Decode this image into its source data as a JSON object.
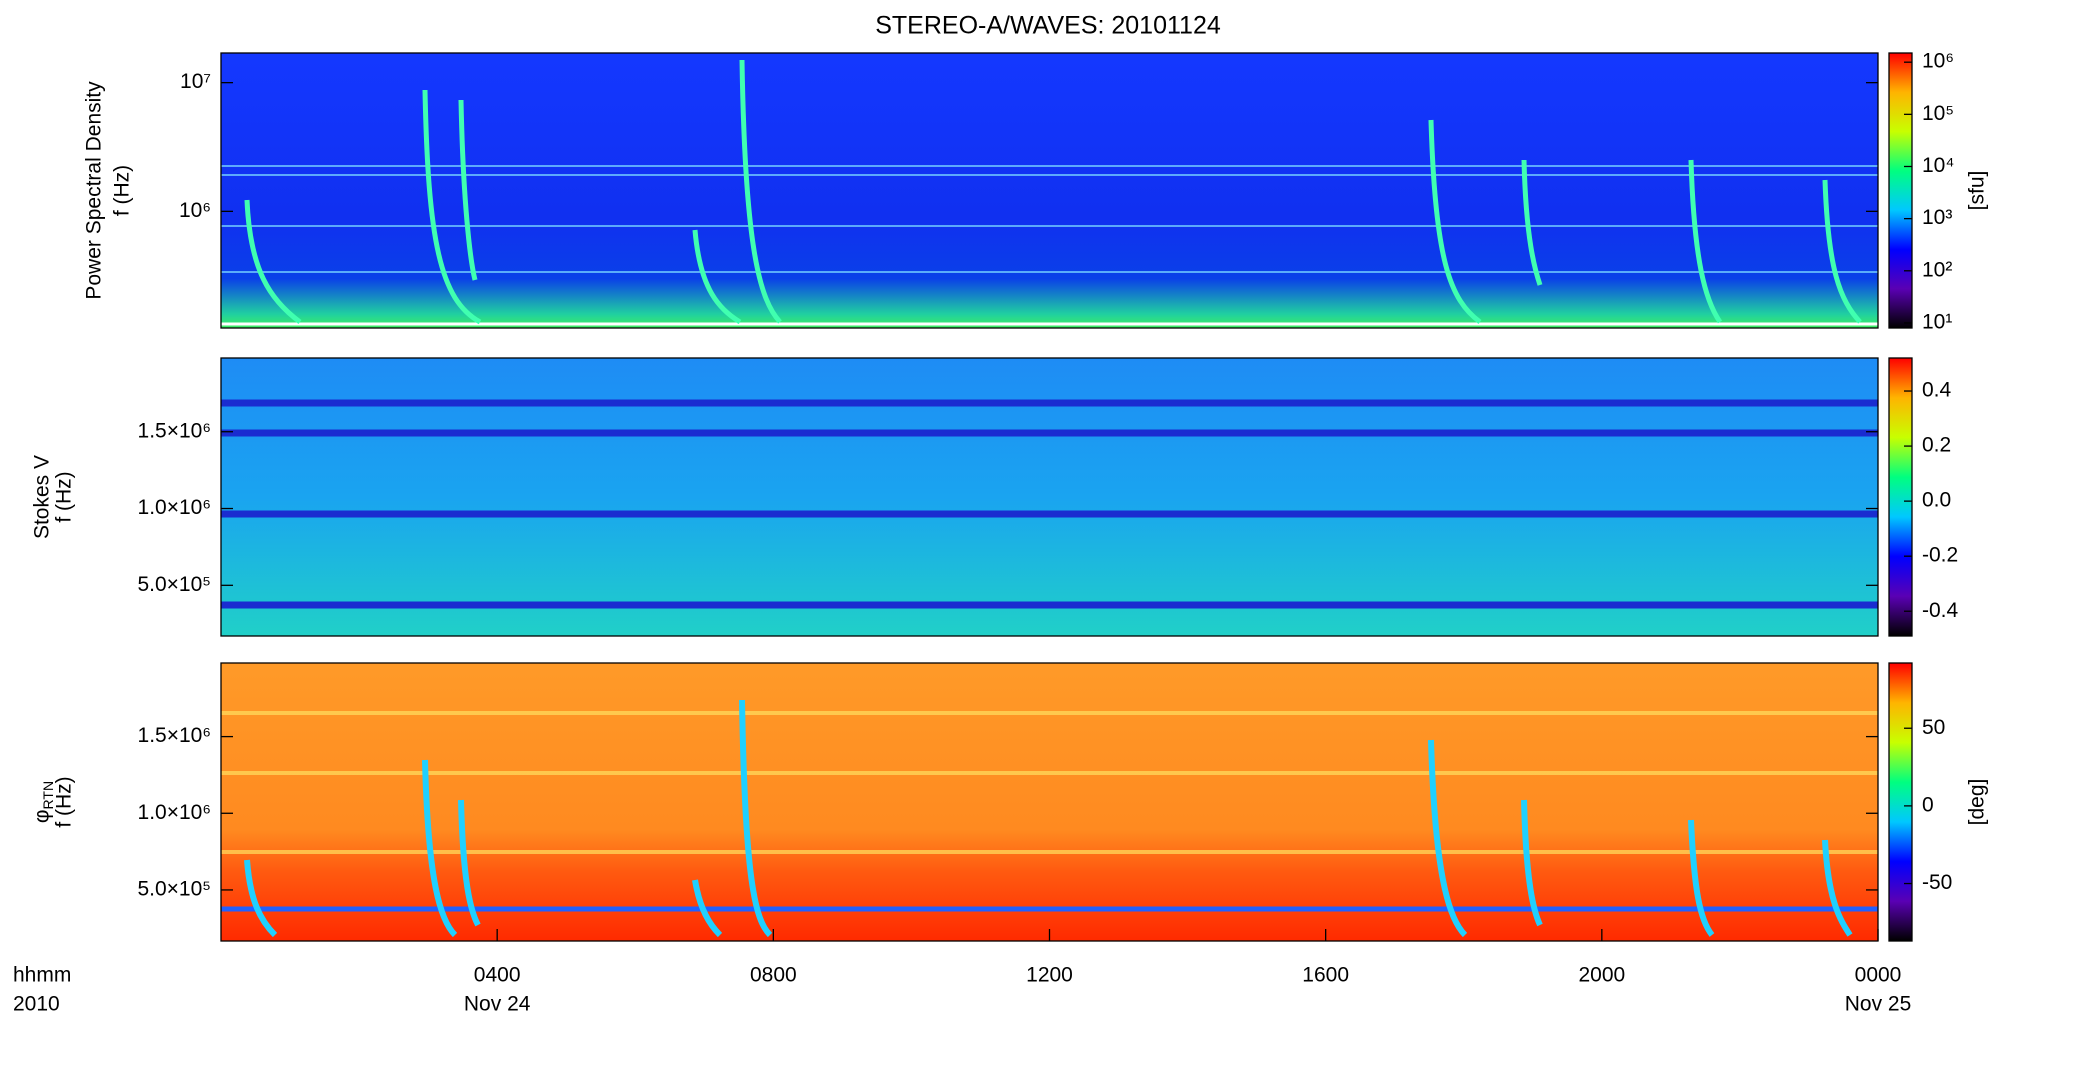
{
  "chart_data": [
    {
      "type": "heatmap",
      "title": "STEREO-A/WAVES: 20101124",
      "ylabel": [
        "Power Spectral Density",
        "f (Hz)"
      ],
      "log": true,
      "ylim": [
        124000,
        17000000
      ],
      "yticks": [
        {
          "value": 1000000,
          "label": "10⁶"
        },
        {
          "value": 10000000,
          "label": "10⁷"
        }
      ],
      "colorbar_label": "[sfu]",
      "clog": true,
      "clim": [
        8,
        1500000
      ],
      "cticks": [
        {
          "value": 10,
          "label": "10¹"
        },
        {
          "value": 100,
          "label": "10²"
        },
        {
          "value": 1000,
          "label": "10³"
        },
        {
          "value": 10000,
          "label": "10⁴"
        },
        {
          "value": 100000,
          "label": "10⁵"
        },
        {
          "value": 1000000,
          "label": "10⁶"
        }
      ],
      "colormap": [
        "#000000",
        "#5a00b4",
        "#0000ff",
        "#00c8ff",
        "#00ff80",
        "#c8ff00",
        "#ffb400",
        "#ff0000"
      ]
    },
    {
      "type": "heatmap",
      "ylabel": [
        "Stokes V",
        "f (Hz)"
      ],
      "ylim": [
        170000,
        1980000
      ],
      "yticks": [
        {
          "value": 500000,
          "label": "5.0×10⁵"
        },
        {
          "value": 1000000,
          "label": "1.0×10⁶"
        },
        {
          "value": 1500000,
          "label": "1.5×10⁶"
        }
      ],
      "clim": [
        -0.49,
        0.52
      ],
      "cticks": [
        -0.4,
        -0.2,
        {
          "value": 0,
          "label": "0.0"
        },
        0.2,
        0.4
      ],
      "colormap": [
        "#000000",
        "#5a00b4",
        "#0000ff",
        "#00c8ff",
        "#00ff80",
        "#c8ff00",
        "#ffb400",
        "#ff0000"
      ]
    },
    {
      "type": "heatmap",
      "ylabel": [
        "φ",
        "f (Hz)"
      ],
      "ylabel_sub": "RTN",
      "ylim": [
        167000,
        1980000
      ],
      "yticks": [
        {
          "value": 500000,
          "label": "5.0×10⁵"
        },
        {
          "value": 1000000,
          "label": "1.0×10⁶"
        },
        {
          "value": 1500000,
          "label": "1.5×10⁶"
        }
      ],
      "colorbar_label": "[deg]",
      "clim": [
        -87,
        92
      ],
      "cticks": [
        -50,
        0,
        50
      ],
      "colormap": [
        "#000000",
        "#5a00b4",
        "#0000ff",
        "#00c8ff",
        "#00ff80",
        "#c8ff00",
        "#ffb400",
        "#ff0000"
      ],
      "xlabel": [
        "hhmm",
        "2010"
      ],
      "xlim": [
        0,
        24
      ],
      "xticks": [
        {
          "value": 4,
          "label": "0400"
        },
        {
          "value": 8,
          "label": "0800"
        },
        {
          "value": 12,
          "label": "1200"
        },
        {
          "value": 16,
          "label": "1600"
        },
        {
          "value": 20,
          "label": "2000"
        },
        {
          "value": 24,
          "label": "0000"
        }
      ],
      "date_labels": [
        {
          "value": 4,
          "label": "Nov 24"
        },
        {
          "value": 24,
          "label": "Nov 25"
        }
      ]
    }
  ]
}
